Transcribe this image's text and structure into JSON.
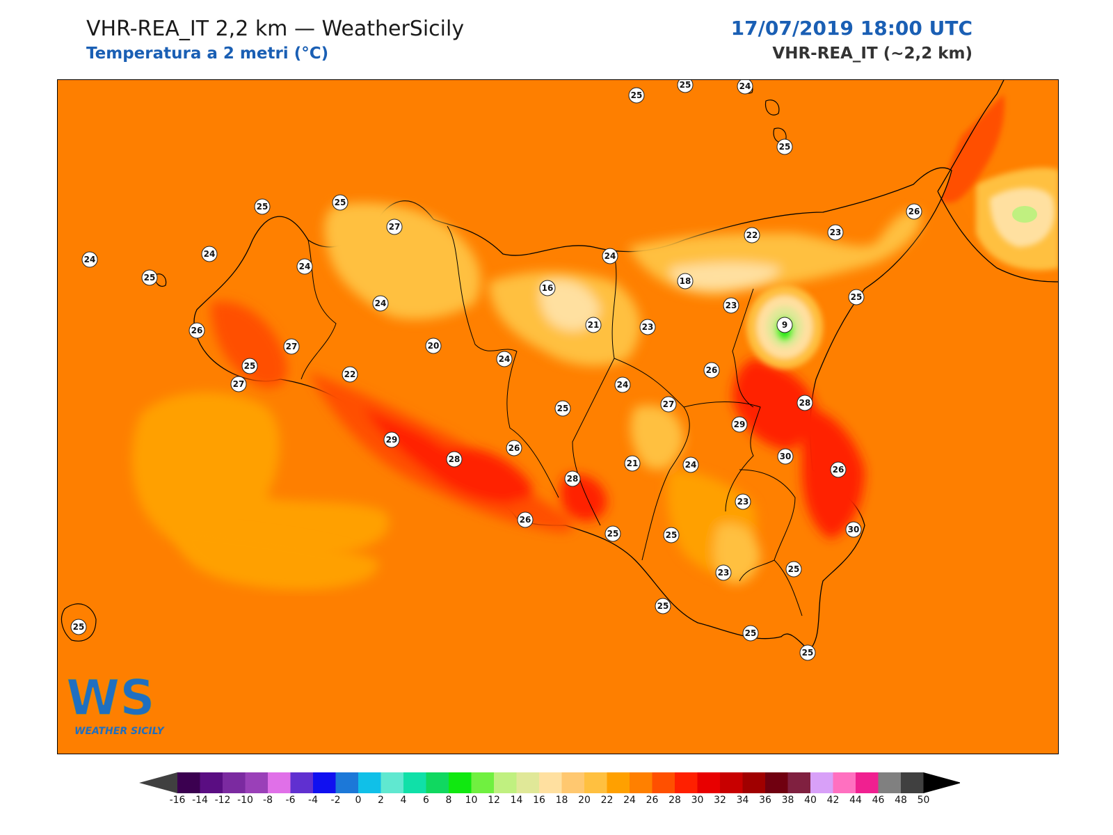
{
  "header": {
    "title": "VHR-REA_IT 2,2 km — WeatherSicily",
    "subtitle": "Temperatura a 2 metri (°C)",
    "datetime": "17/07/2019 18:00 UTC",
    "model": "VHR-REA_IT (~2,2 km)"
  },
  "logo": {
    "letters": "WS",
    "text": "WEATHER SICILY"
  },
  "colors": {
    "sea_background": "#fe7f00",
    "title_blue": "#1a5fb4"
  },
  "colorbar": {
    "ticks": [
      "-16",
      "-14",
      "-12",
      "-10",
      "-8",
      "-6",
      "-4",
      "-2",
      "0",
      "2",
      "4",
      "6",
      "8",
      "10",
      "12",
      "14",
      "16",
      "18",
      "20",
      "22",
      "24",
      "26",
      "28",
      "30",
      "32",
      "34",
      "36",
      "38",
      "40",
      "42",
      "44",
      "46",
      "48",
      "50"
    ],
    "colors": [
      "#3b0050",
      "#5a0d82",
      "#7b2aa0",
      "#9a40b8",
      "#e070e8",
      "#6030d0",
      "#1010f0",
      "#1c78d8",
      "#10c0e8",
      "#60e8d0",
      "#10e0a8",
      "#10d860",
      "#10e810",
      "#70f040",
      "#c0f080",
      "#e0e898",
      "#ffe0a0",
      "#ffc870",
      "#ffc040",
      "#ffa000",
      "#ff8000",
      "#ff5000",
      "#ff2000",
      "#e80000",
      "#c80000",
      "#a00000",
      "#700010",
      "#802040",
      "#d8a0f8",
      "#ff70c0",
      "#f02090",
      "#808080",
      "#404040"
    ]
  },
  "stations": [
    {
      "v": "25"
    },
    {
      "v": "25"
    },
    {
      "v": "24"
    },
    {
      "v": "25"
    },
    {
      "v": "25"
    },
    {
      "v": "25"
    },
    {
      "v": "27"
    },
    {
      "v": "24"
    },
    {
      "v": "25"
    },
    {
      "v": "24"
    },
    {
      "v": "24"
    },
    {
      "v": "25"
    },
    {
      "v": "24"
    },
    {
      "v": "26"
    },
    {
      "v": "27"
    },
    {
      "v": "27"
    },
    {
      "v": "22"
    },
    {
      "v": "20"
    },
    {
      "v": "24"
    },
    {
      "v": "16"
    },
    {
      "v": "24"
    },
    {
      "v": "21"
    },
    {
      "v": "23"
    },
    {
      "v": "18"
    },
    {
      "v": "22"
    },
    {
      "v": "23"
    },
    {
      "v": "26"
    },
    {
      "v": "23"
    },
    {
      "v": "9"
    },
    {
      "v": "25"
    },
    {
      "v": "26"
    },
    {
      "v": "24"
    },
    {
      "v": "25"
    },
    {
      "v": "27"
    },
    {
      "v": "28"
    },
    {
      "v": "29"
    },
    {
      "v": "29"
    },
    {
      "v": "28"
    },
    {
      "v": "26"
    },
    {
      "v": "30"
    },
    {
      "v": "28"
    },
    {
      "v": "21"
    },
    {
      "v": "24"
    },
    {
      "v": "26"
    },
    {
      "v": "23"
    },
    {
      "v": "26"
    },
    {
      "v": "25"
    },
    {
      "v": "25"
    },
    {
      "v": "30"
    },
    {
      "v": "23"
    },
    {
      "v": "25"
    },
    {
      "v": "25"
    },
    {
      "v": "25"
    },
    {
      "v": "25"
    },
    {
      "v": "25"
    }
  ]
}
